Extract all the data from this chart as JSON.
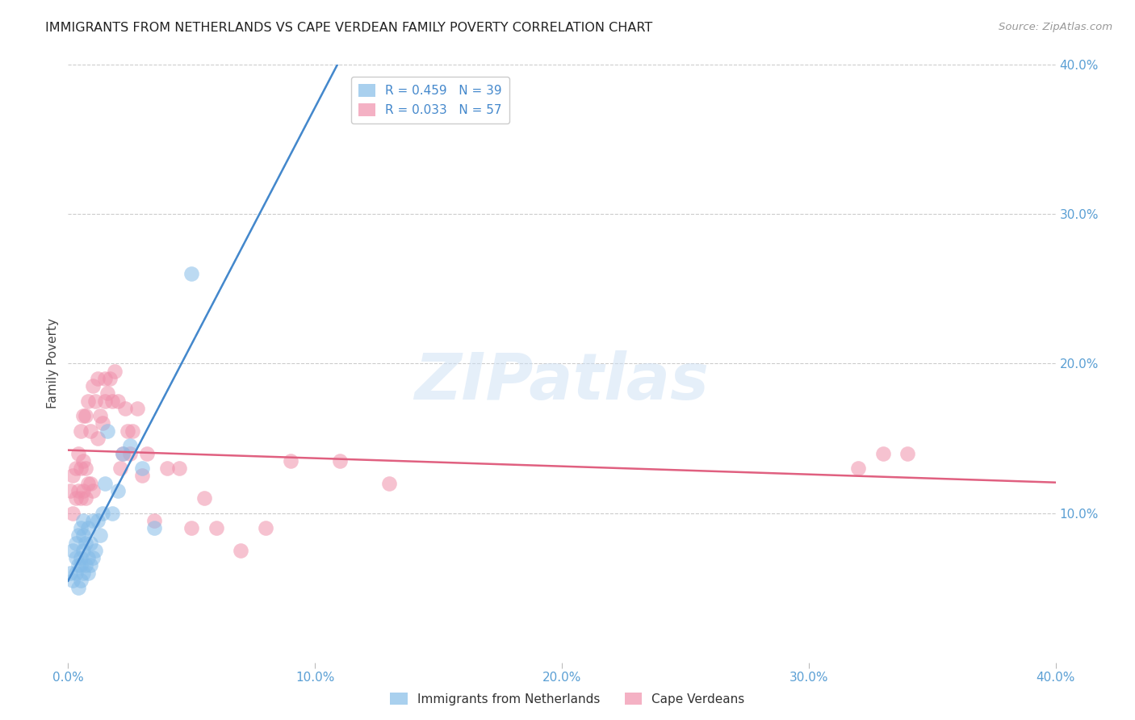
{
  "title": "IMMIGRANTS FROM NETHERLANDS VS CAPE VERDEAN FAMILY POVERTY CORRELATION CHART",
  "source": "Source: ZipAtlas.com",
  "ylabel": "Family Poverty",
  "xlim": [
    0.0,
    0.4
  ],
  "ylim": [
    0.0,
    0.4
  ],
  "xticks": [
    0.0,
    0.1,
    0.2,
    0.3,
    0.4
  ],
  "yticks_right": [
    0.1,
    0.2,
    0.3,
    0.4
  ],
  "xtick_labels": [
    "0.0%",
    "10.0%",
    "20.0%",
    "30.0%",
    "40.0%"
  ],
  "ytick_labels_right": [
    "10.0%",
    "20.0%",
    "30.0%",
    "40.0%"
  ],
  "watermark": "ZIPatlas",
  "series1_label": "Immigrants from Netherlands",
  "series2_label": "Cape Verdeans",
  "series1_color": "#85bce8",
  "series2_color": "#f090ab",
  "series1_line_color": "#4488cc",
  "series2_line_color": "#e06080",
  "series1_dash_color": "#b8d5f0",
  "series1_N": 39,
  "series2_N": 57,
  "series1_R": 0.459,
  "series2_R": 0.033,
  "leg1_label": "R = 0.459   N = 39",
  "leg2_label": "R = 0.033   N = 57",
  "leg_text_color": "#4488cc",
  "leg_pink_text_color": "#e06080",
  "series1_x": [
    0.001,
    0.002,
    0.002,
    0.003,
    0.003,
    0.003,
    0.004,
    0.004,
    0.004,
    0.005,
    0.005,
    0.005,
    0.005,
    0.006,
    0.006,
    0.006,
    0.006,
    0.007,
    0.007,
    0.008,
    0.008,
    0.008,
    0.009,
    0.009,
    0.01,
    0.01,
    0.011,
    0.012,
    0.013,
    0.014,
    0.015,
    0.016,
    0.018,
    0.02,
    0.022,
    0.025,
    0.03,
    0.035,
    0.05
  ],
  "series1_y": [
    0.06,
    0.055,
    0.075,
    0.06,
    0.07,
    0.08,
    0.05,
    0.065,
    0.085,
    0.055,
    0.065,
    0.07,
    0.09,
    0.06,
    0.075,
    0.085,
    0.095,
    0.065,
    0.08,
    0.06,
    0.07,
    0.09,
    0.065,
    0.08,
    0.07,
    0.095,
    0.075,
    0.095,
    0.085,
    0.1,
    0.12,
    0.155,
    0.1,
    0.115,
    0.14,
    0.145,
    0.13,
    0.09,
    0.26
  ],
  "series2_x": [
    0.001,
    0.002,
    0.002,
    0.003,
    0.003,
    0.004,
    0.004,
    0.005,
    0.005,
    0.005,
    0.006,
    0.006,
    0.006,
    0.007,
    0.007,
    0.007,
    0.008,
    0.008,
    0.009,
    0.009,
    0.01,
    0.01,
    0.011,
    0.012,
    0.012,
    0.013,
    0.014,
    0.015,
    0.015,
    0.016,
    0.017,
    0.018,
    0.019,
    0.02,
    0.021,
    0.022,
    0.023,
    0.024,
    0.025,
    0.026,
    0.028,
    0.03,
    0.032,
    0.035,
    0.04,
    0.045,
    0.05,
    0.055,
    0.06,
    0.07,
    0.08,
    0.09,
    0.11,
    0.13,
    0.32,
    0.33,
    0.34
  ],
  "series2_y": [
    0.115,
    0.1,
    0.125,
    0.11,
    0.13,
    0.115,
    0.14,
    0.11,
    0.13,
    0.155,
    0.115,
    0.135,
    0.165,
    0.11,
    0.13,
    0.165,
    0.12,
    0.175,
    0.12,
    0.155,
    0.115,
    0.185,
    0.175,
    0.15,
    0.19,
    0.165,
    0.16,
    0.19,
    0.175,
    0.18,
    0.19,
    0.175,
    0.195,
    0.175,
    0.13,
    0.14,
    0.17,
    0.155,
    0.14,
    0.155,
    0.17,
    0.125,
    0.14,
    0.095,
    0.13,
    0.13,
    0.09,
    0.11,
    0.09,
    0.075,
    0.09,
    0.135,
    0.135,
    0.12,
    0.13,
    0.14,
    0.14
  ]
}
